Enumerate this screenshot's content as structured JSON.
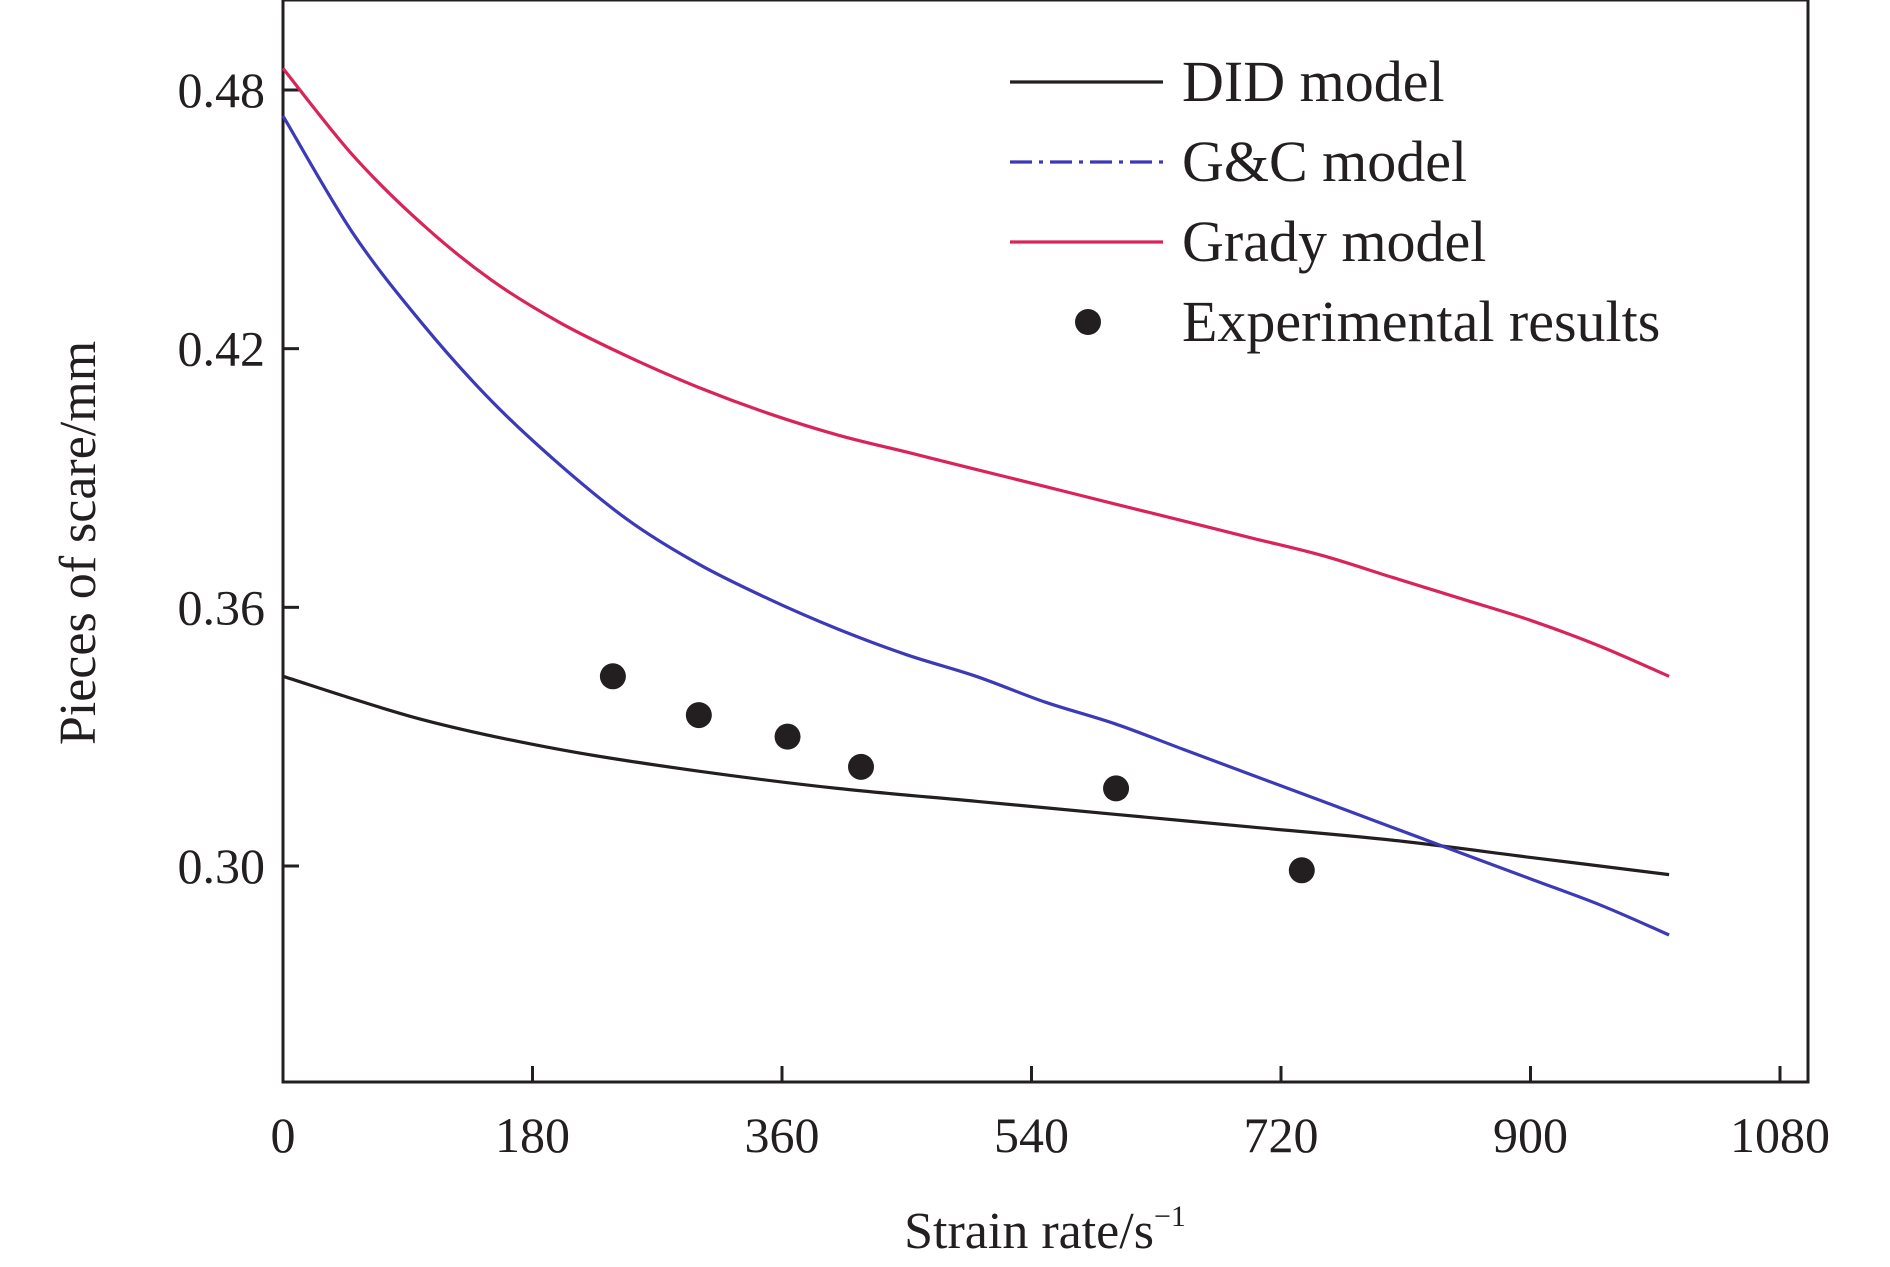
{
  "chart_data": {
    "type": "line",
    "xlabel": "Strain rate/s",
    "xlabel_superscript": "−1",
    "ylabel": "Pieces of scare/mm",
    "xlim": [
      0,
      1100
    ],
    "ylim": [
      0.25,
      0.5
    ],
    "x_ticks": [
      0,
      180,
      360,
      540,
      720,
      900,
      1080
    ],
    "y_ticks": [
      0.3,
      0.36,
      0.42,
      0.48
    ],
    "x_tick_labels": [
      "0",
      "180",
      "360",
      "540",
      "720",
      "900",
      "1080"
    ],
    "y_tick_labels": [
      "0.30",
      "0.36",
      "0.42",
      "0.48"
    ],
    "grid": false,
    "legend_position": "top-right",
    "series": [
      {
        "name": "DID model",
        "kind": "line",
        "style": "solid",
        "color": "#231f20",
        "x": [
          0,
          100,
          200,
          300,
          400,
          500,
          600,
          700,
          800,
          900,
          1000
        ],
        "y": [
          0.344,
          0.334,
          0.327,
          0.322,
          0.318,
          0.315,
          0.312,
          0.309,
          0.306,
          0.302,
          0.298
        ]
      },
      {
        "name": "G&C model",
        "kind": "line",
        "style": "dash-dot",
        "color": "#3d3ab8",
        "x": [
          0,
          50,
          100,
          150,
          200,
          250,
          300,
          350,
          400,
          450,
          500,
          550,
          600,
          650,
          700,
          750,
          800,
          850,
          900,
          950,
          1000
        ],
        "y": [
          0.474,
          0.447,
          0.426,
          0.408,
          0.393,
          0.38,
          0.37,
          0.362,
          0.355,
          0.349,
          0.344,
          0.338,
          0.333,
          0.327,
          0.321,
          0.315,
          0.309,
          0.303,
          0.297,
          0.291,
          0.284
        ]
      },
      {
        "name": "Grady model",
        "kind": "line",
        "style": "solid",
        "color": "#d9245a",
        "x": [
          0,
          50,
          100,
          150,
          200,
          250,
          300,
          350,
          400,
          450,
          500,
          550,
          600,
          650,
          700,
          750,
          800,
          850,
          900,
          950,
          1000
        ],
        "y": [
          0.485,
          0.465,
          0.449,
          0.436,
          0.426,
          0.418,
          0.411,
          0.405,
          0.4,
          0.396,
          0.392,
          0.388,
          0.384,
          0.38,
          0.376,
          0.372,
          0.367,
          0.362,
          0.357,
          0.351,
          0.344
        ]
      },
      {
        "name": "Experimental results",
        "kind": "scatter",
        "color": "#231f20",
        "x": [
          238,
          300,
          364,
          417,
          601,
          735
        ],
        "y": [
          0.344,
          0.335,
          0.33,
          0.323,
          0.318,
          0.299
        ]
      }
    ]
  }
}
